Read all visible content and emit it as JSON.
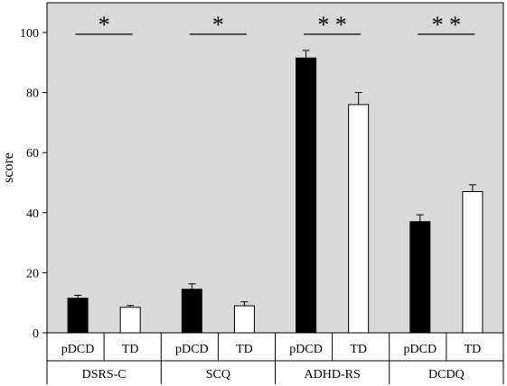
{
  "chart_data": {
    "type": "bar",
    "ylabel": "score",
    "ylim": [
      0,
      110
    ],
    "yticks": [
      "0",
      "20",
      "40",
      "60",
      "80",
      "100"
    ],
    "groups": [
      "DSRS-C",
      "SCQ",
      "ADHD-RS",
      "DCDQ"
    ],
    "sub_categories": [
      "pDCD",
      "TD"
    ],
    "series": [
      {
        "name": "pDCD",
        "color": "#000000",
        "values": [
          11.5,
          14.5,
          91.5,
          37
        ],
        "errors": [
          1,
          1.8,
          2.5,
          2.3
        ]
      },
      {
        "name": "TD",
        "color": "#ffffff",
        "values": [
          8.5,
          9,
          76,
          47
        ],
        "errors": [
          0.6,
          1.3,
          4,
          2.3
        ]
      }
    ],
    "significance": [
      "*",
      "*",
      "* *",
      "* *"
    ],
    "background": "#d9d9d9",
    "grid": false
  }
}
